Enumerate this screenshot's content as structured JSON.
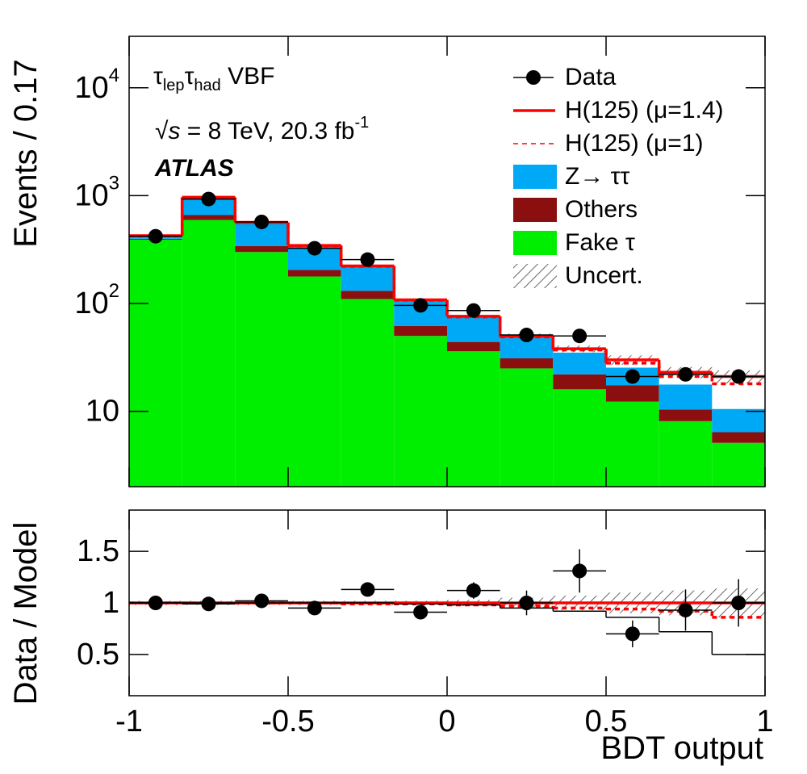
{
  "chart_data": [
    {
      "type": "histogram",
      "log_y": true,
      "ylabel": "Events / 0.17",
      "legend": "upper right",
      "annotations": [
        [
          "τ",
          "lep",
          "τ",
          "had",
          " VBF"
        ],
        [
          "√",
          "s",
          " = 8 TeV, 20.3 fb",
          "-1"
        ],
        "ATLAS"
      ],
      "bins": [
        -1,
        -0.8333,
        -0.6667,
        -0.5,
        -0.3333,
        -0.1667,
        0,
        0.1667,
        0.3333,
        0.5,
        0.6667,
        0.8333,
        1
      ],
      "xlim": [
        -1,
        1
      ],
      "ylim": [
        2,
        30000
      ],
      "yticks": [
        {
          "value": 10,
          "label": "10"
        },
        {
          "value": 100,
          "label": "10",
          "power": "2"
        },
        {
          "value": 1000,
          "label": "10",
          "power": "3"
        },
        {
          "value": 10000,
          "label": "10",
          "power": "4"
        }
      ],
      "series": [
        {
          "name": "Data",
          "color": "#000000",
          "style": "points",
          "values": [
            420,
            930,
            570,
            325,
            255,
            96,
            86,
            51,
            50,
            21,
            22,
            21
          ]
        },
        {
          "name": "H(125) (μ=1.4)",
          "color": "#ff0000",
          "style": "line",
          "values": [
            425,
            965,
            565,
            345,
            223,
            108,
            76,
            50,
            38,
            30,
            23,
            21
          ]
        },
        {
          "name": "H(125) (μ=1)",
          "color": "#ff0000",
          "style": "dashed",
          "values": [
            423,
            960,
            562,
            343,
            221,
            107,
            75,
            49,
            37,
            28,
            21,
            18
          ]
        },
        {
          "name": "Z→ ττ",
          "color": "#00a9f5",
          "style": "stacked",
          "values": [
            15,
            300,
            225,
            140,
            92,
            46,
            32,
            19,
            13,
            8,
            7.3,
            4.1
          ]
        },
        {
          "name": "Others",
          "color": "#8b0f0f",
          "style": "stacked",
          "values": [
            8,
            65,
            40,
            27,
            21,
            12,
            8,
            6,
            6,
            5.1,
            2.3,
            1.3
          ]
        },
        {
          "name": "Fake τ",
          "color": "#00ee00",
          "style": "stacked",
          "values": [
            390,
            595,
            300,
            178,
            110,
            50,
            36,
            25,
            16,
            12.3,
            8.1,
            5.1
          ]
        },
        {
          "name": "Uncert.",
          "color": "#777777",
          "style": "hatch",
          "values": [
            0.02,
            0.02,
            0.02,
            0.02,
            0.02,
            0.02,
            0.03,
            0.05,
            0.07,
            0.1,
            0.12,
            0.14
          ]
        }
      ]
    },
    {
      "type": "histogram",
      "log_y": false,
      "ylabel": "Data / Model",
      "xlabel": "BDT output",
      "bins": [
        -1,
        -0.8333,
        -0.6667,
        -0.5,
        -0.3333,
        -0.1667,
        0,
        0.1667,
        0.3333,
        0.5,
        0.6667,
        0.8333,
        1
      ],
      "xlim": [
        -1,
        1
      ],
      "ylim": [
        0.1,
        1.9
      ],
      "xticks": [
        -1,
        -0.5,
        0,
        0.5,
        1
      ],
      "yticks": [
        0.5,
        1,
        1.5
      ],
      "series": [
        {
          "color": "#ff0000",
          "style": "line",
          "values": [
            1,
            1,
            1,
            1,
            1,
            1,
            1,
            1,
            1,
            1,
            1,
            1
          ]
        },
        {
          "color": "#ff0000",
          "style": "dashed",
          "values": [
            1,
            1,
            1,
            1,
            0.99,
            0.99,
            0.98,
            0.97,
            0.95,
            0.94,
            0.92,
            0.86
          ]
        },
        {
          "color": "#000000",
          "style": "step",
          "values": [
            1,
            1,
            1,
            1,
            1,
            0.99,
            0.98,
            0.95,
            0.92,
            0.86,
            0.72,
            0.5
          ]
        },
        {
          "color": "#000000",
          "style": "points",
          "values": [
            1.0,
            0.99,
            1.02,
            0.95,
            1.13,
            0.91,
            1.12,
            1.0,
            1.31,
            0.7,
            0.93,
            1.0
          ],
          "errors": [
            0.03,
            0.03,
            0.03,
            0.04,
            0.05,
            0.07,
            0.08,
            0.12,
            0.21,
            0.13,
            0.2,
            0.23
          ]
        }
      ]
    }
  ]
}
